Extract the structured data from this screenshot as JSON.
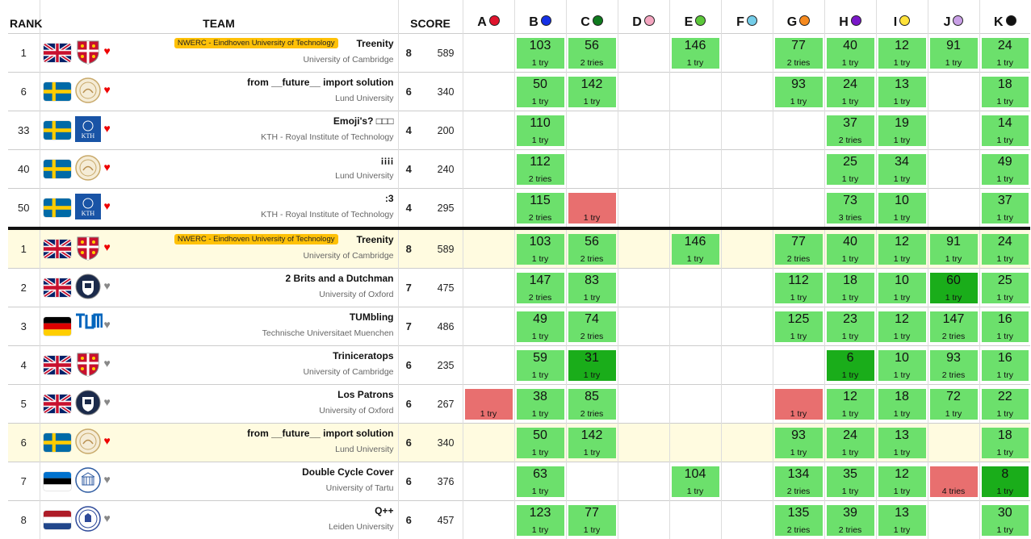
{
  "header": {
    "rank": "RANK",
    "team": "TEAM",
    "score": "SCORE"
  },
  "problems": [
    {
      "label": "A",
      "color": "#e0142d"
    },
    {
      "label": "B",
      "color": "#1530e5"
    },
    {
      "label": "C",
      "color": "#0f7a1e"
    },
    {
      "label": "D",
      "color": "#f4a6c0"
    },
    {
      "label": "E",
      "color": "#5cc83a"
    },
    {
      "label": "F",
      "color": "#74cde9"
    },
    {
      "label": "G",
      "color": "#f68a1f"
    },
    {
      "label": "H",
      "color": "#7a17c8"
    },
    {
      "label": "I",
      "color": "#ffe23a"
    },
    {
      "label": "J",
      "color": "#c9a0e6"
    },
    {
      "label": "K",
      "color": "#111111"
    }
  ],
  "rows": [
    {
      "rank": "1",
      "flag": "uk",
      "logo": "cambridge-logo",
      "heart": "red",
      "award": "NWERC - Eindhoven University of Technology",
      "name": "Treenity",
      "uni": "University of Cambridge",
      "solved": "8",
      "penalty": "589",
      "fav": false,
      "sep": false,
      "cells": [
        null,
        [
          "103",
          "1 try",
          "g"
        ],
        [
          "56",
          "2 tries",
          "g"
        ],
        null,
        [
          "146",
          "1 try",
          "g"
        ],
        null,
        [
          "77",
          "2 tries",
          "g"
        ],
        [
          "40",
          "1 try",
          "g"
        ],
        [
          "12",
          "1 try",
          "g"
        ],
        [
          "91",
          "1 try",
          "g"
        ],
        [
          "24",
          "1 try",
          "g"
        ]
      ]
    },
    {
      "rank": "6",
      "flag": "se",
      "logo": "lund-logo",
      "heart": "red",
      "award": "",
      "name": "from __future__ import solution",
      "uni": "Lund University",
      "solved": "6",
      "penalty": "340",
      "fav": false,
      "sep": false,
      "cells": [
        null,
        [
          "50",
          "1 try",
          "g"
        ],
        [
          "142",
          "1 try",
          "g"
        ],
        null,
        null,
        null,
        [
          "93",
          "1 try",
          "g"
        ],
        [
          "24",
          "1 try",
          "g"
        ],
        [
          "13",
          "1 try",
          "g"
        ],
        null,
        [
          "18",
          "1 try",
          "g"
        ]
      ]
    },
    {
      "rank": "33",
      "flag": "se",
      "logo": "kth-logo",
      "heart": "red",
      "award": "",
      "name": "Emoji's? □□□",
      "uni": "KTH - Royal Institute of Technology",
      "solved": "4",
      "penalty": "200",
      "fav": false,
      "sep": false,
      "cells": [
        null,
        [
          "110",
          "1 try",
          "g"
        ],
        null,
        null,
        null,
        null,
        null,
        [
          "37",
          "2 tries",
          "g"
        ],
        [
          "19",
          "1 try",
          "g"
        ],
        null,
        [
          "14",
          "1 try",
          "g"
        ]
      ]
    },
    {
      "rank": "40",
      "flag": "se",
      "logo": "lund-logo",
      "heart": "red",
      "award": "",
      "name": "¡¡¡¡",
      "uni": "Lund University",
      "solved": "4",
      "penalty": "240",
      "fav": false,
      "sep": false,
      "cells": [
        null,
        [
          "112",
          "2 tries",
          "g"
        ],
        null,
        null,
        null,
        null,
        null,
        [
          "25",
          "1 try",
          "g"
        ],
        [
          "34",
          "1 try",
          "g"
        ],
        null,
        [
          "49",
          "1 try",
          "g"
        ]
      ]
    },
    {
      "rank": "50",
      "flag": "se",
      "logo": "kth-logo",
      "heart": "red",
      "award": "",
      "name": ":3",
      "uni": "KTH - Royal Institute of Technology",
      "solved": "4",
      "penalty": "295",
      "fav": false,
      "sep": false,
      "cells": [
        null,
        [
          "115",
          "2 tries",
          "g"
        ],
        [
          "",
          "1 try",
          "r"
        ],
        null,
        null,
        null,
        null,
        [
          "73",
          "3 tries",
          "g"
        ],
        [
          "10",
          "1 try",
          "g"
        ],
        null,
        [
          "37",
          "1 try",
          "g"
        ]
      ]
    },
    {
      "rank": "1",
      "flag": "uk",
      "logo": "cambridge-logo",
      "heart": "red",
      "award": "NWERC - Eindhoven University of Technology",
      "name": "Treenity",
      "uni": "University of Cambridge",
      "solved": "8",
      "penalty": "589",
      "fav": true,
      "sep": true,
      "cells": [
        null,
        [
          "103",
          "1 try",
          "g"
        ],
        [
          "56",
          "2 tries",
          "g"
        ],
        null,
        [
          "146",
          "1 try",
          "g"
        ],
        null,
        [
          "77",
          "2 tries",
          "g"
        ],
        [
          "40",
          "1 try",
          "g"
        ],
        [
          "12",
          "1 try",
          "g"
        ],
        [
          "91",
          "1 try",
          "g"
        ],
        [
          "24",
          "1 try",
          "g"
        ]
      ]
    },
    {
      "rank": "2",
      "flag": "uk",
      "logo": "oxford-logo",
      "heart": "grey",
      "award": "",
      "name": "2 Brits and a Dutchman",
      "uni": "University of Oxford",
      "solved": "7",
      "penalty": "475",
      "fav": false,
      "sep": false,
      "cells": [
        null,
        [
          "147",
          "2 tries",
          "g"
        ],
        [
          "83",
          "1 try",
          "g"
        ],
        null,
        null,
        null,
        [
          "112",
          "1 try",
          "g"
        ],
        [
          "18",
          "1 try",
          "g"
        ],
        [
          "10",
          "1 try",
          "g"
        ],
        [
          "60",
          "1 try",
          "f"
        ],
        [
          "25",
          "1 try",
          "g"
        ]
      ]
    },
    {
      "rank": "3",
      "flag": "de",
      "logo": "tum-logo",
      "heart": "grey",
      "award": "",
      "name": "TUMbling",
      "uni": "Technische Universitaet Muenchen",
      "solved": "7",
      "penalty": "486",
      "fav": false,
      "sep": false,
      "cells": [
        null,
        [
          "49",
          "1 try",
          "g"
        ],
        [
          "74",
          "2 tries",
          "g"
        ],
        null,
        null,
        null,
        [
          "125",
          "1 try",
          "g"
        ],
        [
          "23",
          "1 try",
          "g"
        ],
        [
          "12",
          "1 try",
          "g"
        ],
        [
          "147",
          "2 tries",
          "g"
        ],
        [
          "16",
          "1 try",
          "g"
        ]
      ]
    },
    {
      "rank": "4",
      "flag": "uk",
      "logo": "cambridge-logo",
      "heart": "grey",
      "award": "",
      "name": "Triniceratops",
      "uni": "University of Cambridge",
      "solved": "6",
      "penalty": "235",
      "fav": false,
      "sep": false,
      "cells": [
        null,
        [
          "59",
          "1 try",
          "g"
        ],
        [
          "31",
          "1 try",
          "f"
        ],
        null,
        null,
        null,
        null,
        [
          "6",
          "1 try",
          "f"
        ],
        [
          "10",
          "1 try",
          "g"
        ],
        [
          "93",
          "2 tries",
          "g"
        ],
        [
          "16",
          "1 try",
          "g"
        ]
      ]
    },
    {
      "rank": "5",
      "flag": "uk",
      "logo": "oxford-logo",
      "heart": "grey",
      "award": "",
      "name": "Los Patrons",
      "uni": "University of Oxford",
      "solved": "6",
      "penalty": "267",
      "fav": false,
      "sep": false,
      "cells": [
        [
          "",
          "1 try",
          "r"
        ],
        [
          "38",
          "1 try",
          "g"
        ],
        [
          "85",
          "2 tries",
          "g"
        ],
        null,
        null,
        null,
        [
          "",
          "1 try",
          "r"
        ],
        [
          "12",
          "1 try",
          "g"
        ],
        [
          "18",
          "1 try",
          "g"
        ],
        [
          "72",
          "1 try",
          "g"
        ],
        [
          "22",
          "1 try",
          "g"
        ]
      ]
    },
    {
      "rank": "6",
      "flag": "se",
      "logo": "lund-logo",
      "heart": "red",
      "award": "",
      "name": "from __future__ import solution",
      "uni": "Lund University",
      "solved": "6",
      "penalty": "340",
      "fav": true,
      "sep": false,
      "cells": [
        null,
        [
          "50",
          "1 try",
          "g"
        ],
        [
          "142",
          "1 try",
          "g"
        ],
        null,
        null,
        null,
        [
          "93",
          "1 try",
          "g"
        ],
        [
          "24",
          "1 try",
          "g"
        ],
        [
          "13",
          "1 try",
          "g"
        ],
        null,
        [
          "18",
          "1 try",
          "g"
        ]
      ]
    },
    {
      "rank": "7",
      "flag": "ee",
      "logo": "tartu-logo",
      "heart": "grey",
      "award": "",
      "name": "Double Cycle Cover",
      "uni": "University of Tartu",
      "solved": "6",
      "penalty": "376",
      "fav": false,
      "sep": false,
      "cells": [
        null,
        [
          "63",
          "1 try",
          "g"
        ],
        null,
        null,
        [
          "104",
          "1 try",
          "g"
        ],
        null,
        [
          "134",
          "2 tries",
          "g"
        ],
        [
          "35",
          "1 try",
          "g"
        ],
        [
          "12",
          "1 try",
          "g"
        ],
        [
          "",
          "4 tries",
          "r"
        ],
        [
          "8",
          "1 try",
          "f"
        ]
      ]
    },
    {
      "rank": "8",
      "flag": "nl",
      "logo": "leiden-logo",
      "heart": "grey",
      "award": "",
      "name": "Q++",
      "uni": "Leiden University",
      "solved": "6",
      "penalty": "457",
      "fav": false,
      "sep": false,
      "cells": [
        null,
        [
          "123",
          "1 try",
          "g"
        ],
        [
          "77",
          "1 try",
          "g"
        ],
        null,
        null,
        null,
        [
          "135",
          "2 tries",
          "g"
        ],
        [
          "39",
          "2 tries",
          "g"
        ],
        [
          "13",
          "1 try",
          "g"
        ],
        null,
        [
          "30",
          "1 try",
          "g"
        ]
      ]
    }
  ]
}
